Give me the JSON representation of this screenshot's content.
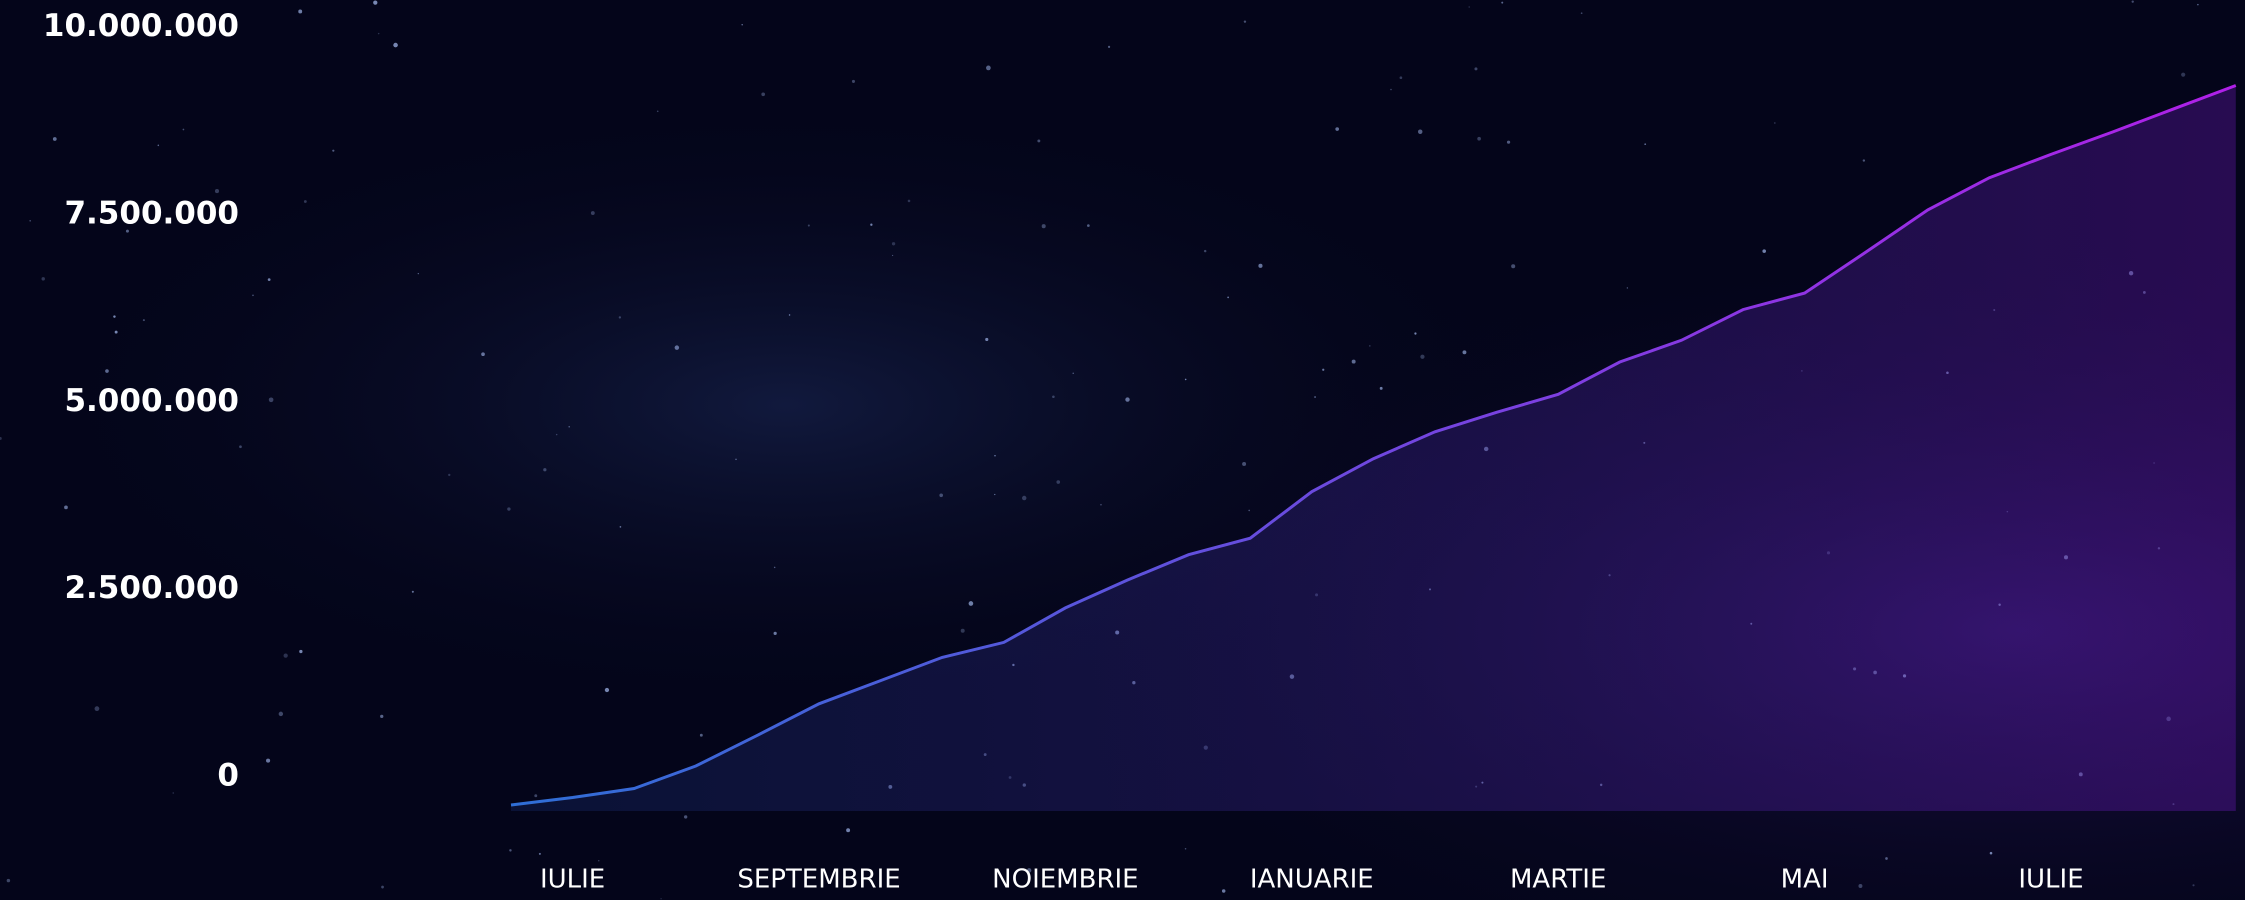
{
  "chart_data": {
    "type": "line",
    "categories": [
      null,
      "IULIE",
      null,
      null,
      null,
      "SEPTEMBRIE",
      null,
      null,
      null,
      "NOIEMBRIE",
      null,
      null,
      null,
      "IANUARIE",
      null,
      null,
      null,
      "MARTIE",
      null,
      null,
      null,
      "MAI",
      null,
      null,
      null,
      "IULIE",
      null,
      null,
      null
    ],
    "values": [
      0.08,
      0.18,
      0.3,
      0.6,
      1.01,
      1.43,
      1.74,
      2.05,
      2.25,
      2.71,
      3.08,
      3.42,
      3.64,
      4.26,
      4.7,
      5.06,
      5.32,
      5.56,
      5.99,
      6.28,
      6.69,
      6.91,
      7.46,
      8.02,
      8.45,
      8.76,
      9.06,
      9.37,
      9.68
    ],
    "ylim": [
      0,
      10000000
    ],
    "yticks": [
      0,
      {
        "value": 2500000,
        "label": "2.500.000"
      },
      {
        "value": 5000000,
        "label": "5.000.000"
      },
      {
        "value": 7500000,
        "label": "7.500.000"
      },
      {
        "value": 10000000,
        "label": "10.000.000"
      }
    ],
    "value_scale": 1000000,
    "grid": true,
    "color": "#a020e0"
  }
}
